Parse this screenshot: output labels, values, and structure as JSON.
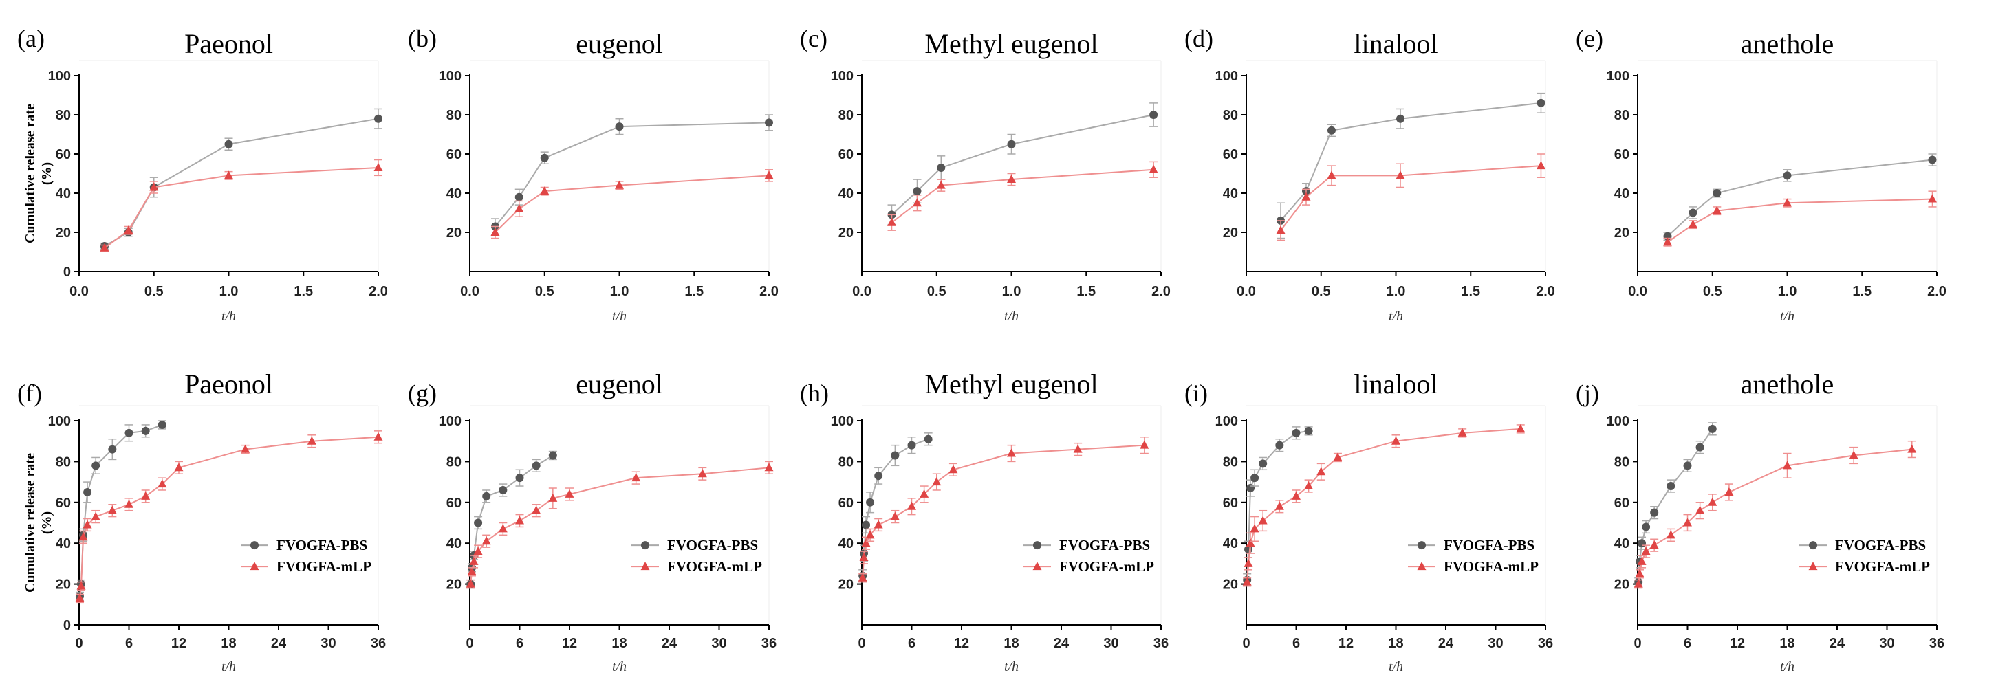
{
  "chart_data": [
    {
      "panel": "(a)",
      "title": "Paeonol",
      "type": "line",
      "xlabel": "t/h",
      "ylabel": "Cumulative release rate (%)",
      "xlim": [
        0,
        2.0
      ],
      "xticks": [
        0.0,
        0.5,
        1.0,
        1.5,
        2.0
      ],
      "ylim": [
        0,
        100
      ],
      "yticks": [
        0,
        20,
        40,
        60,
        80,
        100
      ],
      "series": [
        {
          "name": "FVOGFA-PBS",
          "x": [
            0.17,
            0.33,
            0.5,
            1.0,
            2.0
          ],
          "y": [
            13,
            20,
            43,
            65,
            78
          ],
          "err": [
            1.5,
            2,
            5,
            3,
            5
          ]
        },
        {
          "name": "FVOGFA-mLP",
          "x": [
            0.17,
            0.33,
            0.5,
            1.0,
            2.0
          ],
          "y": [
            12,
            21,
            43,
            49,
            53
          ],
          "err": [
            1.5,
            2,
            3,
            2,
            4
          ]
        }
      ]
    },
    {
      "panel": "(b)",
      "title": "eugenol",
      "type": "line",
      "xlabel": "t/h",
      "ylabel": "",
      "xlim": [
        0,
        2.0
      ],
      "xticks": [
        0.0,
        0.5,
        1.0,
        1.5,
        2.0
      ],
      "ylim": [
        0,
        100
      ],
      "yticks": [
        20,
        40,
        60,
        80,
        100
      ],
      "series": [
        {
          "name": "FVOGFA-PBS",
          "x": [
            0.17,
            0.33,
            0.5,
            1.0,
            2.0
          ],
          "y": [
            23,
            38,
            58,
            74,
            76
          ],
          "err": [
            4,
            4,
            3,
            4,
            4
          ]
        },
        {
          "name": "FVOGFA-mLP",
          "x": [
            0.17,
            0.33,
            0.5,
            1.0,
            2.0
          ],
          "y": [
            20,
            32,
            41,
            44,
            49
          ],
          "err": [
            3,
            4,
            2,
            2,
            3
          ]
        }
      ]
    },
    {
      "panel": "(c)",
      "title": "Methyl eugenol",
      "type": "line",
      "xlabel": "t/h",
      "ylabel": "",
      "xlim": [
        0,
        2.0
      ],
      "xticks": [
        0.0,
        0.5,
        1.0,
        1.5,
        2.0
      ],
      "ylim": [
        0,
        100
      ],
      "yticks": [
        20,
        40,
        60,
        80,
        100
      ],
      "series": [
        {
          "name": "FVOGFA-PBS",
          "x": [
            0.2,
            0.37,
            0.53,
            1.0,
            1.95
          ],
          "y": [
            29,
            41,
            53,
            65,
            80
          ],
          "err": [
            5,
            6,
            6,
            5,
            6
          ]
        },
        {
          "name": "FVOGFA-mLP",
          "x": [
            0.2,
            0.37,
            0.53,
            1.0,
            1.95
          ],
          "y": [
            25,
            35,
            44,
            47,
            52
          ],
          "err": [
            4,
            4,
            3,
            3,
            4
          ]
        }
      ]
    },
    {
      "panel": "(d)",
      "title": "linalool",
      "type": "line",
      "xlabel": "t/h",
      "ylabel": "",
      "xlim": [
        0,
        2.0
      ],
      "xticks": [
        0.0,
        0.5,
        1.0,
        1.5,
        2.0
      ],
      "ylim": [
        0,
        100
      ],
      "yticks": [
        20,
        40,
        60,
        80,
        100
      ],
      "series": [
        {
          "name": "FVOGFA-PBS",
          "x": [
            0.23,
            0.4,
            0.57,
            1.03,
            1.97
          ],
          "y": [
            26,
            41,
            72,
            78,
            86
          ],
          "err": [
            9,
            4,
            3,
            5,
            5
          ]
        },
        {
          "name": "FVOGFA-mLP",
          "x": [
            0.23,
            0.4,
            0.57,
            1.03,
            1.97
          ],
          "y": [
            21,
            38,
            49,
            49,
            54
          ],
          "err": [
            5,
            4,
            5,
            6,
            6
          ]
        }
      ]
    },
    {
      "panel": "(e)",
      "title": "anethole",
      "type": "line",
      "xlabel": "t/h",
      "ylabel": "",
      "xlim": [
        0,
        2.0
      ],
      "xticks": [
        0.0,
        0.5,
        1.0,
        1.5,
        2.0
      ],
      "ylim": [
        0,
        100
      ],
      "yticks": [
        20,
        40,
        60,
        80,
        100
      ],
      "series": [
        {
          "name": "FVOGFA-PBS",
          "x": [
            0.2,
            0.37,
            0.53,
            1.0,
            1.97
          ],
          "y": [
            18,
            30,
            40,
            49,
            57
          ],
          "err": [
            2,
            3,
            2,
            3,
            3
          ]
        },
        {
          "name": "FVOGFA-mLP",
          "x": [
            0.2,
            0.37,
            0.53,
            1.0,
            1.97
          ],
          "y": [
            15,
            24,
            31,
            35,
            37
          ],
          "err": [
            2,
            2,
            2,
            2,
            4
          ]
        }
      ]
    },
    {
      "panel": "(f)",
      "title": "Paeonol",
      "type": "line",
      "xlabel": "t/h",
      "ylabel": "Cumulative release rate (%)",
      "xlim": [
        0,
        36
      ],
      "xticks": [
        0,
        6,
        12,
        18,
        24,
        30,
        36
      ],
      "ylim": [
        0,
        100
      ],
      "yticks": [
        0,
        20,
        40,
        60,
        80,
        100
      ],
      "legend": "right",
      "series": [
        {
          "name": "FVOGFA-PBS",
          "x": [
            0.08,
            0.25,
            0.5,
            1,
            2,
            4,
            6,
            8,
            10
          ],
          "y": [
            14,
            20,
            44,
            65,
            78,
            86,
            94,
            95,
            98
          ],
          "err": [
            2,
            2,
            3,
            5,
            4,
            5,
            4,
            3,
            2
          ]
        },
        {
          "name": "FVOGFA-mLP",
          "x": [
            0.08,
            0.25,
            0.5,
            1,
            2,
            4,
            6,
            8,
            10,
            12,
            20,
            28,
            36
          ],
          "y": [
            13,
            19,
            43,
            49,
            53,
            56,
            59,
            63,
            69,
            77,
            86,
            90,
            92
          ],
          "err": [
            2,
            2,
            3,
            3,
            3,
            3,
            3,
            3,
            3,
            3,
            2,
            3,
            3
          ]
        }
      ]
    },
    {
      "panel": "(g)",
      "title": "eugenol",
      "type": "line",
      "xlabel": "t/h",
      "ylabel": "",
      "xlim": [
        0,
        36
      ],
      "xticks": [
        0,
        6,
        12,
        18,
        24,
        30,
        36
      ],
      "ylim": [
        0,
        100
      ],
      "yticks": [
        20,
        40,
        60,
        80,
        100
      ],
      "ytick_labels": [
        "20",
        "40",
        "60",
        "80",
        "100"
      ],
      "legend": "right",
      "series": [
        {
          "name": "FVOGFA-PBS",
          "x": [
            0.1,
            0.25,
            0.5,
            1,
            2,
            4,
            6,
            8,
            10
          ],
          "y": [
            20,
            28,
            34,
            50,
            63,
            66,
            72,
            78,
            83
          ],
          "err": [
            2,
            2,
            2,
            3,
            3,
            3,
            4,
            3,
            2
          ]
        },
        {
          "name": "FVOGFA-mLP",
          "x": [
            0.1,
            0.25,
            0.5,
            1,
            2,
            4,
            6,
            8,
            10,
            12,
            20,
            28,
            36
          ],
          "y": [
            20,
            26,
            31,
            36,
            41,
            47,
            51,
            56,
            62,
            64,
            72,
            74,
            77
          ],
          "err": [
            2,
            2,
            3,
            3,
            3,
            3,
            3,
            3,
            5,
            3,
            3,
            3,
            3
          ]
        }
      ]
    },
    {
      "panel": "(h)",
      "title": "Methyl eugenol",
      "type": "line",
      "xlabel": "t/h",
      "ylabel": "",
      "xlim": [
        0,
        36
      ],
      "xticks": [
        0,
        6,
        12,
        18,
        24,
        30,
        36
      ],
      "ylim": [
        0,
        100
      ],
      "yticks": [
        20,
        40,
        60,
        80,
        100
      ],
      "legend": "right",
      "series": [
        {
          "name": "FVOGFA-PBS",
          "x": [
            0.1,
            0.25,
            0.5,
            1,
            2,
            4,
            6,
            8
          ],
          "y": [
            24,
            35,
            49,
            60,
            73,
            83,
            88,
            91
          ],
          "err": [
            3,
            4,
            4,
            5,
            4,
            5,
            4,
            3
          ]
        },
        {
          "name": "FVOGFA-mLP",
          "x": [
            0.1,
            0.25,
            0.5,
            1,
            2,
            4,
            6,
            7.5,
            9,
            11,
            18,
            26,
            34
          ],
          "y": [
            23,
            33,
            40,
            44,
            49,
            53,
            58,
            64,
            70,
            76,
            84,
            86,
            88
          ],
          "err": [
            2,
            3,
            3,
            3,
            3,
            3,
            4,
            4,
            4,
            3,
            4,
            3,
            4
          ]
        }
      ]
    },
    {
      "panel": "(i)",
      "title": "linalool",
      "type": "line",
      "xlabel": "t/h",
      "ylabel": "",
      "xlim": [
        0,
        36
      ],
      "xticks": [
        0,
        6,
        12,
        18,
        24,
        30,
        36
      ],
      "ylim": [
        0,
        100
      ],
      "yticks": [
        20,
        40,
        60,
        80,
        100
      ],
      "legend": "right",
      "series": [
        {
          "name": "FVOGFA-PBS",
          "x": [
            0.1,
            0.25,
            0.5,
            1,
            2,
            4,
            6,
            7.5
          ],
          "y": [
            22,
            37,
            67,
            72,
            79,
            88,
            94,
            95
          ],
          "err": [
            3,
            4,
            4,
            4,
            3,
            3,
            3,
            2
          ]
        },
        {
          "name": "FVOGFA-mLP",
          "x": [
            0.1,
            0.25,
            0.5,
            1,
            2,
            4,
            6,
            7.5,
            9,
            11,
            18,
            26,
            33
          ],
          "y": [
            21,
            30,
            40,
            47,
            51,
            58,
            63,
            68,
            75,
            82,
            90,
            94,
            96
          ],
          "err": [
            2,
            3,
            5,
            6,
            5,
            3,
            3,
            3,
            4,
            2,
            3,
            2,
            2
          ]
        }
      ]
    },
    {
      "panel": "(j)",
      "title": "anethole",
      "type": "line",
      "xlabel": "t/h",
      "ylabel": "",
      "xlim": [
        0,
        36
      ],
      "xticks": [
        0,
        6,
        12,
        18,
        24,
        30,
        36
      ],
      "ylim": [
        0,
        100
      ],
      "yticks": [
        20,
        40,
        60,
        80,
        100
      ],
      "legend": "right",
      "series": [
        {
          "name": "FVOGFA-PBS",
          "x": [
            0.1,
            0.25,
            0.5,
            1,
            2,
            4,
            6,
            7.5,
            9
          ],
          "y": [
            21,
            31,
            40,
            48,
            55,
            68,
            78,
            87,
            96
          ],
          "err": [
            2,
            3,
            3,
            3,
            3,
            3,
            3,
            3,
            3
          ]
        },
        {
          "name": "FVOGFA-mLP",
          "x": [
            0.1,
            0.25,
            0.5,
            1,
            2,
            4,
            6,
            7.5,
            9,
            11,
            18,
            26,
            33
          ],
          "y": [
            20,
            25,
            31,
            36,
            39,
            44,
            50,
            56,
            60,
            65,
            78,
            83,
            86
          ],
          "err": [
            2,
            2,
            3,
            3,
            3,
            3,
            4,
            4,
            4,
            4,
            6,
            4,
            4
          ]
        }
      ]
    }
  ],
  "legend_labels": [
    "FVOGFA-PBS",
    "FVOGFA-mLP"
  ],
  "colors": {
    "pbs": "#555555",
    "pbs_line": "#aaaaaa",
    "mlp": "#e04545",
    "mlp_line": "#ef8f8f",
    "axis": "#000000"
  }
}
